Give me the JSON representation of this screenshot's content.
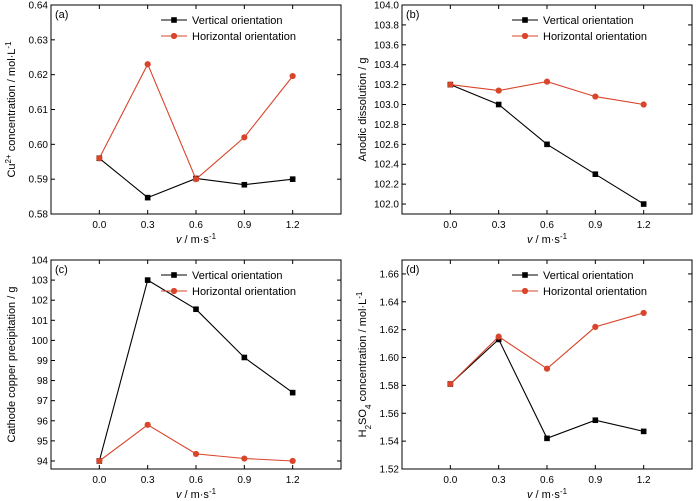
{
  "chart_data": [
    {
      "type": "line",
      "panel": "(a)",
      "x": [
        0.0,
        0.3,
        0.6,
        0.9,
        1.2
      ],
      "xticks": [
        "0.0",
        "0.3",
        "0.6",
        "0.9",
        "1.2"
      ],
      "xlim": [
        -0.3,
        1.5
      ],
      "ylim": [
        0.58,
        0.64
      ],
      "yticks": [
        "0.58",
        "0.59",
        "0.60",
        "0.61",
        "0.62",
        "0.63",
        "0.64"
      ],
      "xlabel_main": "v",
      "xlabel_unit": " / m·s",
      "xlabel_sup": "-1",
      "ylabel_parts": [
        [
          "Cu",
          "n"
        ],
        [
          "2+",
          "sup"
        ],
        [
          " concentration / mol·L",
          "n"
        ],
        [
          "-1",
          "sup"
        ]
      ],
      "legend": "top-right",
      "series": [
        {
          "name": "Vertical orientation",
          "color": "#000000",
          "marker": "square",
          "values": [
            0.596,
            0.5847,
            0.5902,
            0.5884,
            0.59
          ]
        },
        {
          "name": "Horizontal orientation",
          "color": "#d9452b",
          "marker": "circle",
          "values": [
            0.596,
            0.623,
            0.59,
            0.602,
            0.6196
          ]
        }
      ]
    },
    {
      "type": "line",
      "panel": "(b)",
      "x": [
        0.0,
        0.3,
        0.6,
        0.9,
        1.2
      ],
      "xticks": [
        "0.0",
        "0.3",
        "0.6",
        "0.9",
        "1.2"
      ],
      "xlim": [
        -0.3,
        1.5
      ],
      "ylim": [
        101.9,
        104.0
      ],
      "yticks": [
        "102.0",
        "102.2",
        "102.4",
        "102.6",
        "102.8",
        "103.0",
        "103.2",
        "103.4",
        "103.6",
        "103.8",
        "104.0"
      ],
      "xlabel_main": "v",
      "xlabel_unit": " / m·s",
      "xlabel_sup": "-1",
      "ylabel_parts": [
        [
          "Anodic dissolution / g",
          "n"
        ]
      ],
      "legend": "top-right",
      "series": [
        {
          "name": "Vertical orientation",
          "color": "#000000",
          "marker": "square",
          "values": [
            103.2,
            103.0,
            102.6,
            102.3,
            102.0
          ]
        },
        {
          "name": "Horizontal orientation",
          "color": "#d9452b",
          "marker": "circle",
          "values": [
            103.2,
            103.14,
            103.23,
            103.08,
            103.0
          ]
        }
      ]
    },
    {
      "type": "line",
      "panel": "(c)",
      "x": [
        0.0,
        0.3,
        0.6,
        0.9,
        1.2
      ],
      "xticks": [
        "0.0",
        "0.3",
        "0.6",
        "0.9",
        "1.2"
      ],
      "xlim": [
        -0.3,
        1.5
      ],
      "ylim": [
        93.6,
        104.0
      ],
      "yticks": [
        "94",
        "95",
        "96",
        "97",
        "98",
        "99",
        "100",
        "101",
        "102",
        "103",
        "104"
      ],
      "xlabel_main": "v",
      "xlabel_unit": " / m·s",
      "xlabel_sup": "-1",
      "ylabel_parts": [
        [
          "Cathode copper precipitation / g",
          "n"
        ]
      ],
      "legend": "top-right",
      "series": [
        {
          "name": "Vertical orientation",
          "color": "#000000",
          "marker": "square",
          "values": [
            94.0,
            103.0,
            101.55,
            99.15,
            97.4
          ]
        },
        {
          "name": "Horizontal orientation",
          "color": "#d9452b",
          "marker": "circle",
          "values": [
            94.0,
            95.8,
            94.35,
            94.12,
            94.0
          ]
        }
      ]
    },
    {
      "type": "line",
      "panel": "(d)",
      "x": [
        0.0,
        0.3,
        0.6,
        0.9,
        1.2
      ],
      "xticks": [
        "0.0",
        "0.3",
        "0.6",
        "0.9",
        "1.2"
      ],
      "xlim": [
        -0.3,
        1.5
      ],
      "ylim": [
        1.52,
        1.67
      ],
      "yticks": [
        "1.52",
        "1.54",
        "1.56",
        "1.58",
        "1.60",
        "1.62",
        "1.64",
        "1.66"
      ],
      "xlabel_main": "v",
      "xlabel_unit": " / m·s",
      "xlabel_sup": "-1",
      "ylabel_parts": [
        [
          "H",
          "n"
        ],
        [
          "2",
          "sub"
        ],
        [
          "SO",
          "n"
        ],
        [
          "4",
          "sub"
        ],
        [
          " concentration / mol·L",
          "n"
        ],
        [
          "-1",
          "sup"
        ]
      ],
      "legend": "top-right",
      "series": [
        {
          "name": "Vertical orientation",
          "color": "#000000",
          "marker": "square",
          "values": [
            1.581,
            1.613,
            1.542,
            1.555,
            1.547
          ]
        },
        {
          "name": "Horizontal orientation",
          "color": "#d9452b",
          "marker": "circle",
          "values": [
            1.581,
            1.615,
            1.592,
            1.622,
            1.632
          ]
        }
      ]
    }
  ]
}
